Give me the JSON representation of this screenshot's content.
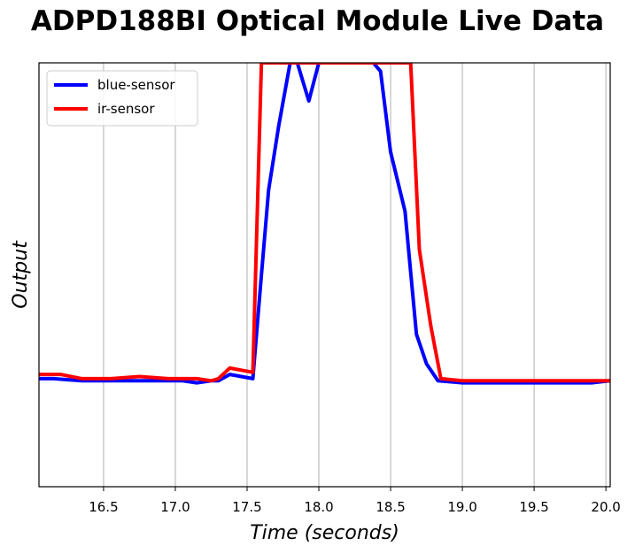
{
  "chart_data": {
    "type": "line",
    "title": "ADPD188BI Optical Module Live Data",
    "xlabel": "Time (seconds)",
    "ylabel": "Output",
    "xlim": [
      16.05,
      20.03
    ],
    "ylim": [
      0,
      100
    ],
    "xticks": [
      16.5,
      17.0,
      17.5,
      18.0,
      18.5,
      19.0,
      19.5,
      20.0
    ],
    "xtick_labels": [
      "16.5",
      "17.0",
      "17.5",
      "18.0",
      "18.5",
      "19.0",
      "19.5",
      "20.0"
    ],
    "grid": "vertical",
    "legend_position": "top-left",
    "series": [
      {
        "name": "blue-sensor",
        "color": "#0000ff",
        "x": [
          16.05,
          16.15,
          16.35,
          16.55,
          16.75,
          16.95,
          17.05,
          17.15,
          17.25,
          17.3,
          17.38,
          17.46,
          17.54,
          17.6,
          17.65,
          17.72,
          17.8,
          17.85,
          17.93,
          18.0,
          18.05,
          18.15,
          18.3,
          18.38,
          18.43,
          18.5,
          18.6,
          18.68,
          18.75,
          18.83,
          19.0,
          19.3,
          19.6,
          19.9,
          20.03
        ],
        "y": [
          25.5,
          25.5,
          25,
          25,
          25,
          25,
          25,
          24.5,
          25,
          25,
          26.5,
          26,
          25.5,
          50,
          70,
          85,
          100,
          100,
          91,
          100,
          100,
          100,
          100,
          100,
          98,
          79,
          65,
          36,
          29,
          25,
          24.5,
          24.5,
          24.5,
          24.5,
          25
        ]
      },
      {
        "name": "ir-sensor",
        "color": "#ff0000",
        "x": [
          16.05,
          16.2,
          16.35,
          16.55,
          16.75,
          16.95,
          17.05,
          17.15,
          17.25,
          17.3,
          17.38,
          17.46,
          17.54,
          17.6,
          17.65,
          17.8,
          18.0,
          18.3,
          18.64,
          18.7,
          18.78,
          18.85,
          19.0,
          19.3,
          19.5,
          19.7,
          19.9,
          20.03
        ],
        "y": [
          26.5,
          26.5,
          25.5,
          25.5,
          26,
          25.5,
          25.5,
          25.5,
          25,
          25.5,
          28,
          27.5,
          27,
          100,
          100,
          100,
          100,
          100,
          100,
          56,
          38,
          25.5,
          25,
          25,
          25,
          25,
          25,
          25
        ]
      }
    ]
  }
}
